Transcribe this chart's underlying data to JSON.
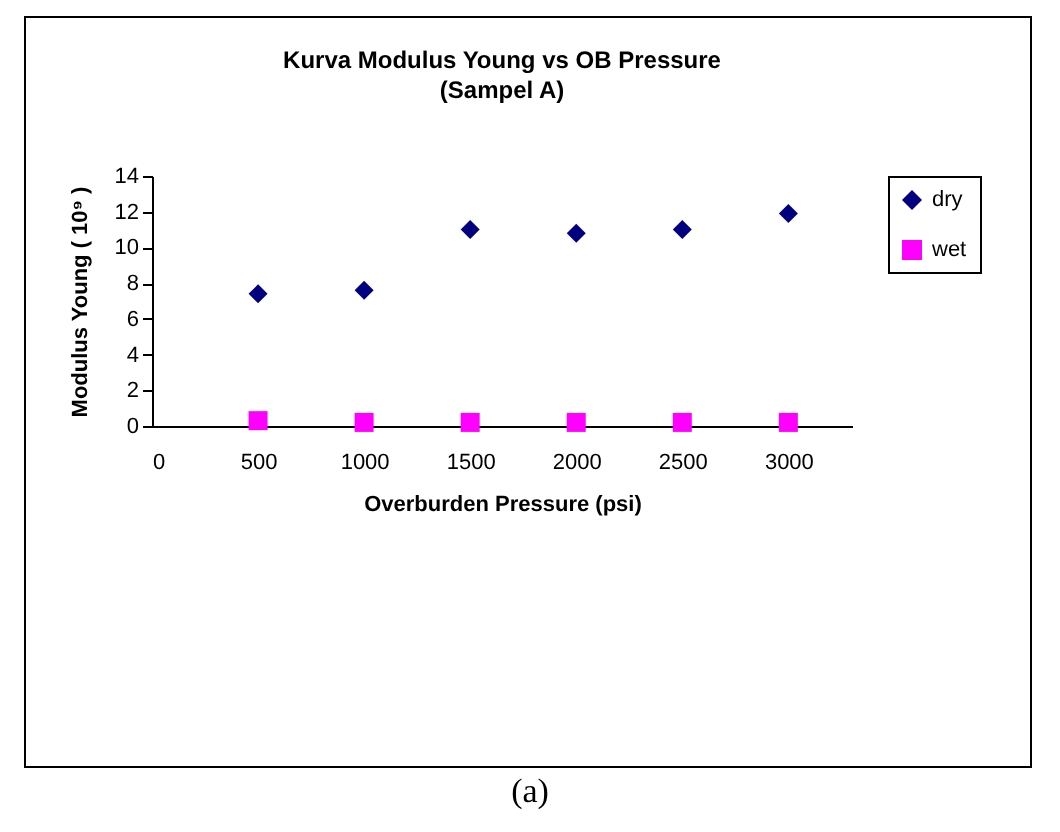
{
  "chart_data": {
    "type": "scatter",
    "title": "Kurva Modulus Young vs OB Pressure",
    "subtitle": "(Sampel A)",
    "xlabel": "Overburden Pressure (psi)",
    "ylabel": "Modulus Young ( 10⁹ )",
    "x": [
      500,
      1000,
      1500,
      2000,
      2500,
      3000
    ],
    "series": [
      {
        "name": "dry",
        "color": "#000080",
        "marker": "diamond",
        "values": [
          7.4,
          7.6,
          11.0,
          10.8,
          11.0,
          11.9
        ]
      },
      {
        "name": "wet",
        "color": "#ff00ff",
        "marker": "square",
        "values": [
          0.3,
          0.2,
          0.2,
          0.2,
          0.2,
          0.2
        ]
      }
    ],
    "xlim": [
      0,
      3300
    ],
    "xticks": [
      0,
      500,
      1000,
      1500,
      2000,
      2500,
      3000
    ],
    "ylim": [
      0,
      14
    ],
    "yticks": [
      0,
      2,
      4,
      6,
      8,
      10,
      12,
      14
    ],
    "grid": false,
    "legend": "right",
    "annotations": [
      "(a)"
    ]
  }
}
